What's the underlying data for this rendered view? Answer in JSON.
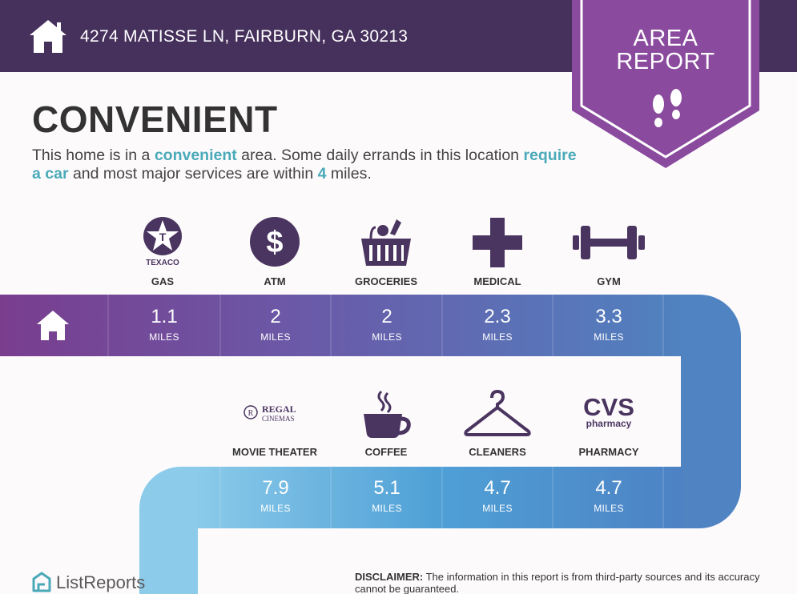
{
  "header": {
    "address": "4274 MATISSE LN, FAIRBURN, GA 30213"
  },
  "badge": {
    "line1": "AREA",
    "line2": "REPORT"
  },
  "title": "CONVENIENT",
  "description": {
    "p1": "This home is in a ",
    "hl1": "convenient",
    "p2": " area. Some daily errands in this location ",
    "hl2": "require a car",
    "p3": " and most major services are within ",
    "hl3": "4",
    "p4": " miles."
  },
  "row1": [
    {
      "label": "GAS",
      "icon": "texaco-logo-icon",
      "brand": "TEXACO",
      "value": "1.1",
      "unit": "MILES"
    },
    {
      "label": "ATM",
      "icon": "dollar-icon",
      "value": "2",
      "unit": "MILES"
    },
    {
      "label": "GROCERIES",
      "icon": "grocery-basket-icon",
      "value": "2",
      "unit": "MILES"
    },
    {
      "label": "MEDICAL",
      "icon": "medical-cross-icon",
      "value": "2.3",
      "unit": "MILES"
    },
    {
      "label": "GYM",
      "icon": "dumbbell-icon",
      "value": "3.3",
      "unit": "MILES"
    }
  ],
  "row2": [
    {
      "label": "MOVIE THEATER",
      "icon": "regal-cinemas-logo-icon",
      "brand1": "REGAL",
      "brand2": "CINEMAS",
      "value": "7.9",
      "unit": "MILES"
    },
    {
      "label": "COFFEE",
      "icon": "coffee-cup-icon",
      "value": "5.1",
      "unit": "MILES"
    },
    {
      "label": "CLEANERS",
      "icon": "hanger-icon",
      "value": "4.7",
      "unit": "MILES"
    },
    {
      "label": "PHARMACY",
      "icon": "cvs-pharmacy-logo-icon",
      "brand1": "CVS",
      "brand2": "pharmacy",
      "value": "4.7",
      "unit": "MILES"
    }
  ],
  "footer": {
    "logo_text": "ListReports",
    "disclaimer_label": "DISCLAIMER:",
    "disclaimer_text": " The information in this report is from third-party sources and its accuracy cannot be guaranteed."
  },
  "colors": {
    "header": "#46305c",
    "badge": "#8a4a9e",
    "accent_text": "#4aaab8",
    "icon": "#4a3560",
    "road_start": "#7a3d8e",
    "road_mid": "#5878b8",
    "road_end": "#8ccbea"
  }
}
